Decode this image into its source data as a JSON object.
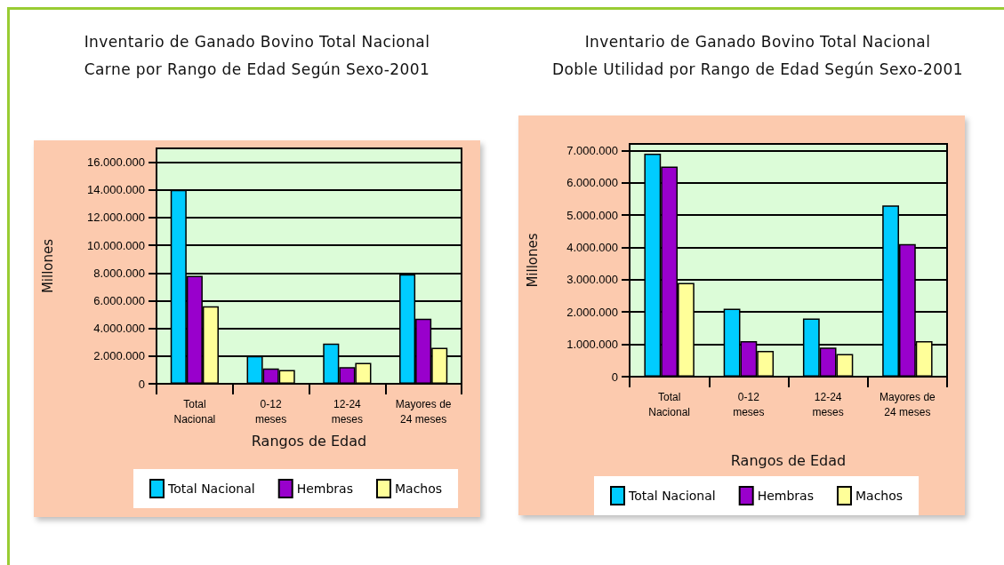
{
  "chart_data": [
    {
      "type": "bar",
      "title": "Inventario de Ganado Bovino Total Nacional",
      "subtitle": "Carne por Rango de Edad Según Sexo-2001",
      "xlabel": "Rangos de Edad",
      "ylabel": "Millones",
      "categories": [
        "Total Nacional",
        "0-12 meses",
        "12-24 meses",
        "Mayores de 24 meses"
      ],
      "series": [
        {
          "name": "Total Nacional",
          "color": "#00ccff",
          "values": [
            14000000,
            2000000,
            2900000,
            7900000
          ]
        },
        {
          "name": "Hembras",
          "color": "#9900cc",
          "values": [
            7800000,
            1100000,
            1200000,
            4700000
          ]
        },
        {
          "name": "Machos",
          "color": "#ffff99",
          "values": [
            5600000,
            1000000,
            1500000,
            2600000
          ]
        }
      ],
      "ylim": [
        0,
        17000000
      ],
      "yticks": [
        0,
        {
          "value": 2000000,
          "label": "2.000.000"
        },
        {
          "value": 4000000,
          "label": "4.000.000"
        },
        {
          "value": 6000000,
          "label": "6.000.000"
        },
        {
          "value": 8000000,
          "label": "8.000.000"
        },
        {
          "value": 10000000,
          "label": "10.000.000"
        },
        {
          "value": 12000000,
          "label": "12.000.000"
        },
        {
          "value": 14000000,
          "label": "14.000.000"
        },
        {
          "value": 16000000,
          "label": "16.000.000"
        }
      ],
      "grid": "y",
      "legend": "bottom"
    },
    {
      "type": "bar",
      "title": "Inventario de Ganado Bovino Total Nacional",
      "subtitle": "Doble Utilidad por Rango de Edad Según Sexo-2001",
      "xlabel": "Rangos de Edad",
      "ylabel": "Millones",
      "categories": [
        "Total Nacional",
        "0-12 meses",
        "12-24 meses",
        "Mayores de 24 meses"
      ],
      "series": [
        {
          "name": "Total Nacional",
          "color": "#00ccff",
          "values": [
            6900000,
            2100000,
            1800000,
            5300000
          ]
        },
        {
          "name": "Hembras",
          "color": "#9900cc",
          "values": [
            6500000,
            1100000,
            900000,
            4100000
          ]
        },
        {
          "name": "Machos",
          "color": "#ffff99",
          "values": [
            2900000,
            800000,
            700000,
            1100000
          ]
        }
      ],
      "ylim": [
        0,
        7200000
      ],
      "yticks": [
        0,
        {
          "value": 1000000,
          "label": "1.000.000"
        },
        {
          "value": 2000000,
          "label": "2.000.000"
        },
        {
          "value": 3000000,
          "label": "3.000.000"
        },
        {
          "value": 4000000,
          "label": "4.000.000"
        },
        {
          "value": 5000000,
          "label": "5.000.000"
        },
        {
          "value": 6000000,
          "label": "6.000.000"
        },
        {
          "value": 7000000,
          "label": "7.000.000"
        }
      ],
      "grid": "y",
      "legend": "bottom"
    }
  ]
}
